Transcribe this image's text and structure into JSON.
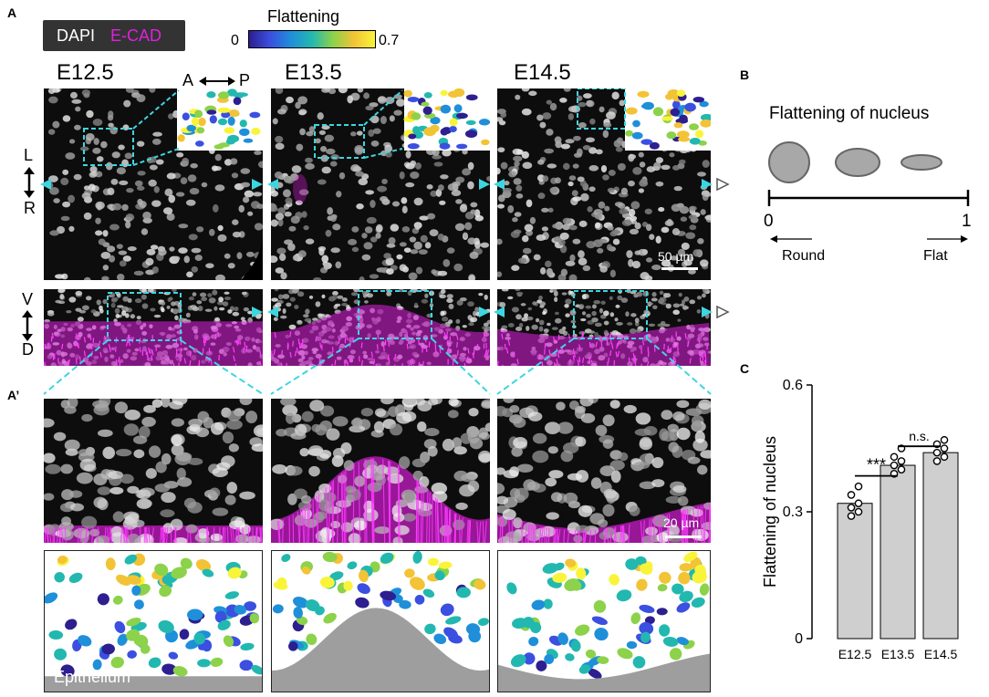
{
  "panels": {
    "A": "A",
    "A_prime": "A’",
    "B": "B",
    "C": "C"
  },
  "legend": {
    "dapi": "DAPI",
    "ecad": "E-CAD"
  },
  "colorbar": {
    "title": "Flattening",
    "min": "0",
    "max": "0.7",
    "colors": [
      "#2d1f8f",
      "#3b4fe0",
      "#1f8fd9",
      "#22b8b0",
      "#8cd24a",
      "#f3c336",
      "#f9f43a"
    ]
  },
  "stages": [
    "E12.5",
    "E13.5",
    "E14.5"
  ],
  "axes": {
    "a": "A",
    "p": "P",
    "l": "L",
    "r": "R",
    "v": "V",
    "d": "D"
  },
  "scalebars": {
    "top": "50 µm",
    "zoom": "20 µm"
  },
  "segmentation_label": "Epithelium",
  "schematic": {
    "title": "Flattening of nucleus",
    "scale_min": "0",
    "scale_max": "1",
    "round": "Round",
    "flat": "Flat"
  },
  "colors": {
    "cyan": "#3dd6e0",
    "magenta": "#e020e0",
    "bar": "#cfcfcf",
    "epithelium": "#9e9e9e"
  },
  "chart_data": {
    "type": "bar",
    "categories": [
      "E12.5",
      "E13.5",
      "E14.5"
    ],
    "values": [
      0.32,
      0.41,
      0.44
    ],
    "points": [
      [
        0.29,
        0.3,
        0.31,
        0.32,
        0.34,
        0.36
      ],
      [
        0.39,
        0.4,
        0.41,
        0.42,
        0.43,
        0.45
      ],
      [
        0.42,
        0.43,
        0.44,
        0.45,
        0.46,
        0.47
      ]
    ],
    "ylabel": "Flattening of nucleus",
    "ylim": [
      0,
      0.6
    ],
    "yticks": [
      "0",
      "0.3",
      "0.6"
    ],
    "significance": [
      "***",
      "n.s."
    ]
  }
}
